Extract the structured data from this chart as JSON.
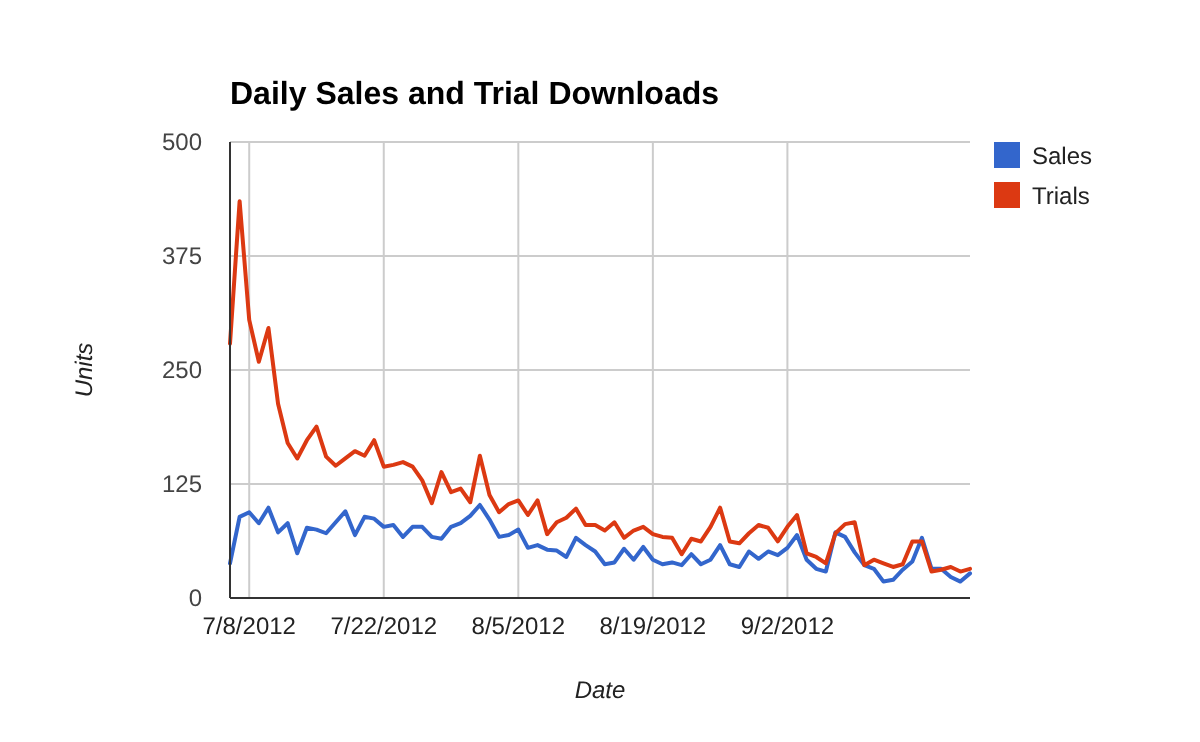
{
  "chart_data": {
    "type": "line",
    "title": "Daily Sales and Trial Downloads",
    "xlabel": "Date",
    "ylabel": "Units",
    "x": [
      "2012-07-06",
      "2012-07-07",
      "2012-07-08",
      "2012-07-09",
      "2012-07-10",
      "2012-07-11",
      "2012-07-12",
      "2012-07-13",
      "2012-07-14",
      "2012-07-15",
      "2012-07-16",
      "2012-07-17",
      "2012-07-18",
      "2012-07-19",
      "2012-07-20",
      "2012-07-21",
      "2012-07-22",
      "2012-07-23",
      "2012-07-24",
      "2012-07-25",
      "2012-07-26",
      "2012-07-27",
      "2012-07-28",
      "2012-07-29",
      "2012-07-30",
      "2012-07-31",
      "2012-08-01",
      "2012-08-02",
      "2012-08-03",
      "2012-08-04",
      "2012-08-05",
      "2012-08-06",
      "2012-08-07",
      "2012-08-08",
      "2012-08-09",
      "2012-08-10",
      "2012-08-11",
      "2012-08-12",
      "2012-08-13",
      "2012-08-14",
      "2012-08-15",
      "2012-08-16",
      "2012-08-17",
      "2012-08-18",
      "2012-08-19",
      "2012-08-20",
      "2012-08-21",
      "2012-08-22",
      "2012-08-23",
      "2012-08-24",
      "2012-08-25",
      "2012-08-26",
      "2012-08-27",
      "2012-08-28",
      "2012-08-29",
      "2012-08-30",
      "2012-08-31",
      "2012-09-01",
      "2012-09-02",
      "2012-09-03",
      "2012-09-04",
      "2012-09-05",
      "2012-09-06",
      "2012-09-07",
      "2012-09-08",
      "2012-09-09",
      "2012-09-10",
      "2012-09-11",
      "2012-09-12",
      "2012-09-13",
      "2012-09-14",
      "2012-09-15",
      "2012-09-16",
      "2012-09-17",
      "2012-09-18",
      "2012-09-19",
      "2012-09-20",
      "2012-09-21"
    ],
    "series": [
      {
        "name": "Sales",
        "color": "#3366cc",
        "values": [
          38,
          89,
          94,
          82,
          99,
          72,
          82,
          49,
          77,
          75,
          71,
          83,
          95,
          69,
          89,
          87,
          78,
          80,
          67,
          78,
          78,
          67,
          65,
          78,
          82,
          90,
          102,
          86,
          67,
          69,
          75,
          55,
          58,
          53,
          52,
          45,
          66,
          58,
          51,
          37,
          39,
          54,
          42,
          56,
          42,
          37,
          39,
          36,
          48,
          37,
          42,
          58,
          37,
          34,
          51,
          43,
          51,
          47,
          55,
          69,
          42,
          32,
          29,
          72,
          67,
          50,
          36,
          32,
          18,
          20,
          31,
          40,
          66,
          32,
          32,
          23,
          18,
          27
        ]
      },
      {
        "name": "Trials",
        "color": "#dc3912",
        "values": [
          279,
          435,
          305,
          259,
          296,
          213,
          170,
          153,
          173,
          188,
          155,
          145,
          153,
          161,
          156,
          173,
          144,
          146,
          149,
          144,
          129,
          104,
          138,
          116,
          120,
          105,
          156,
          113,
          94,
          103,
          107,
          91,
          107,
          70,
          83,
          88,
          98,
          80,
          80,
          74,
          83,
          66,
          74,
          78,
          70,
          67,
          66,
          48,
          65,
          62,
          78,
          99,
          62,
          60,
          71,
          80,
          77,
          62,
          78,
          91,
          49,
          45,
          38,
          71,
          81,
          83,
          36,
          42,
          38,
          34,
          37,
          62,
          62,
          29,
          31,
          34,
          29,
          32
        ]
      }
    ],
    "xlim": [
      "2012-07-06",
      "2012-09-21"
    ],
    "xticks": [
      {
        "value": "2012-07-08",
        "label": "7/8/2012"
      },
      {
        "value": "2012-07-22",
        "label": "7/22/2012"
      },
      {
        "value": "2012-08-05",
        "label": "8/5/2012"
      },
      {
        "value": "2012-08-19",
        "label": "8/19/2012"
      },
      {
        "value": "2012-09-02",
        "label": "9/2/2012"
      }
    ],
    "ylim": [
      0,
      500
    ],
    "yticks": [
      0,
      125,
      250,
      375,
      500
    ],
    "grid": true,
    "legend": "right",
    "marker": "none",
    "line_style": "solid"
  }
}
